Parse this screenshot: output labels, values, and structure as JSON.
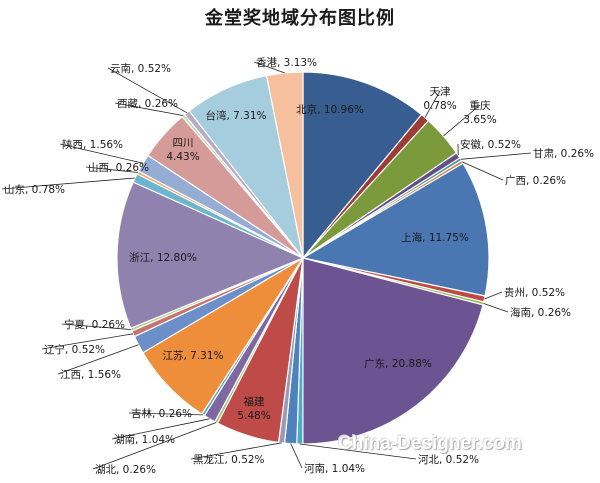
{
  "chart_data": {
    "type": "pie",
    "title": "金堂奖地域分布图比例",
    "slices": [
      {
        "name": "北京",
        "value": 10.96,
        "label": "10.96%",
        "color": "#385e91"
      },
      {
        "name": "天津",
        "value": 0.78,
        "label": "0.78%",
        "color": "#9c3b37"
      },
      {
        "name": "重庆",
        "value": 3.65,
        "label": "3.65%",
        "color": "#7a9a3c"
      },
      {
        "name": "安徽",
        "value": 0.52,
        "label": "0.52%",
        "color": "#654e86"
      },
      {
        "name": "甘肃",
        "value": 0.26,
        "label": "0.26%",
        "color": "#3d8ea5"
      },
      {
        "name": "广西",
        "value": 0.26,
        "label": "0.26%",
        "color": "#d0813a"
      },
      {
        "name": "上海",
        "value": 11.75,
        "label": "11.75%",
        "color": "#4a77b2"
      },
      {
        "name": "贵州",
        "value": 0.52,
        "label": "0.52%",
        "color": "#be4a47"
      },
      {
        "name": "海南",
        "value": 0.26,
        "label": "0.26%",
        "color": "#9bbb59"
      },
      {
        "name": "广东",
        "value": 20.88,
        "label": "20.88%",
        "color": "#6c5392"
      },
      {
        "name": "河北",
        "value": 0.52,
        "label": "0.52%",
        "color": "#4bacc6"
      },
      {
        "name": "河南",
        "value": 1.04,
        "label": "1.04%",
        "color": "#4f81bd"
      },
      {
        "name": "黑龙江",
        "value": 0.52,
        "label": "0.52%",
        "color": "#9a9ab8"
      },
      {
        "name": "福建",
        "value": 5.48,
        "label": "5.48%",
        "color": "#be4b48"
      },
      {
        "name": "湖北",
        "value": 0.26,
        "label": "0.26%",
        "color": "#a8c16e"
      },
      {
        "name": "湖南",
        "value": 1.04,
        "label": "1.04%",
        "color": "#7f68a1"
      },
      {
        "name": "吉林",
        "value": 0.26,
        "label": "0.26%",
        "color": "#4bacc6"
      },
      {
        "name": "江苏",
        "value": 7.31,
        "label": "7.31%",
        "color": "#ee8e3a"
      },
      {
        "name": "江西",
        "value": 1.56,
        "label": "1.56%",
        "color": "#6b8fc8"
      },
      {
        "name": "辽宁",
        "value": 0.52,
        "label": "0.52%",
        "color": "#c77370"
      },
      {
        "name": "宁夏",
        "value": 0.26,
        "label": "0.26%",
        "color": "#b5cc8a"
      },
      {
        "name": "浙江",
        "value": 12.8,
        "label": "12.80%",
        "color": "#8f82ae"
      },
      {
        "name": "山东",
        "value": 0.78,
        "label": "0.78%",
        "color": "#6bb6cc"
      },
      {
        "name": "山西",
        "value": 0.26,
        "label": "0.26%",
        "color": "#f2a766"
      },
      {
        "name": "陕西",
        "value": 1.56,
        "label": "1.56%",
        "color": "#95acd5"
      },
      {
        "name": "四川",
        "value": 4.43,
        "label": "4.43%",
        "color": "#d59b99"
      },
      {
        "name": "西藏",
        "value": 0.26,
        "label": "0.26%",
        "color": "#c5d6a6"
      },
      {
        "name": "云南",
        "value": 0.52,
        "label": "0.52%",
        "color": "#b6acca"
      },
      {
        "name": "台湾",
        "value": 7.31,
        "label": "7.31%",
        "color": "#a6cddd"
      },
      {
        "name": "香港",
        "value": 3.13,
        "label": "3.13%",
        "color": "#f6c09e"
      }
    ]
  },
  "watermark": "China-Designer.com"
}
